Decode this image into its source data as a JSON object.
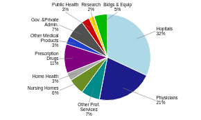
{
  "chart_data": {
    "type": "pie",
    "categories": [
      "Hopitals",
      "Physicians",
      "Other Prof.\nServices",
      "Nursing Homes",
      "Home Health",
      "Prescription\nDrugs",
      "Other Medical\nProducts",
      "Gov. &Private\nAdmin.",
      "Public Health",
      "Research",
      "Bidgs & Equip"
    ],
    "values": [
      32,
      21,
      7,
      6,
      3,
      11,
      3,
      7,
      3,
      2,
      5
    ],
    "value_labels": [
      "32%",
      "21%",
      "7%",
      "6%",
      "3%",
      "11%",
      "3%",
      "7%",
      "3%",
      "2%",
      "5%"
    ],
    "colors": [
      "#ADD8E6",
      "#1C1C8C",
      "#008B8B",
      "#6B8E23",
      "#A9A9A9",
      "#800080",
      "#1E3ECC",
      "#505050",
      "#CC0000",
      "#FFD700",
      "#00BB00"
    ],
    "data_labels": true
  }
}
